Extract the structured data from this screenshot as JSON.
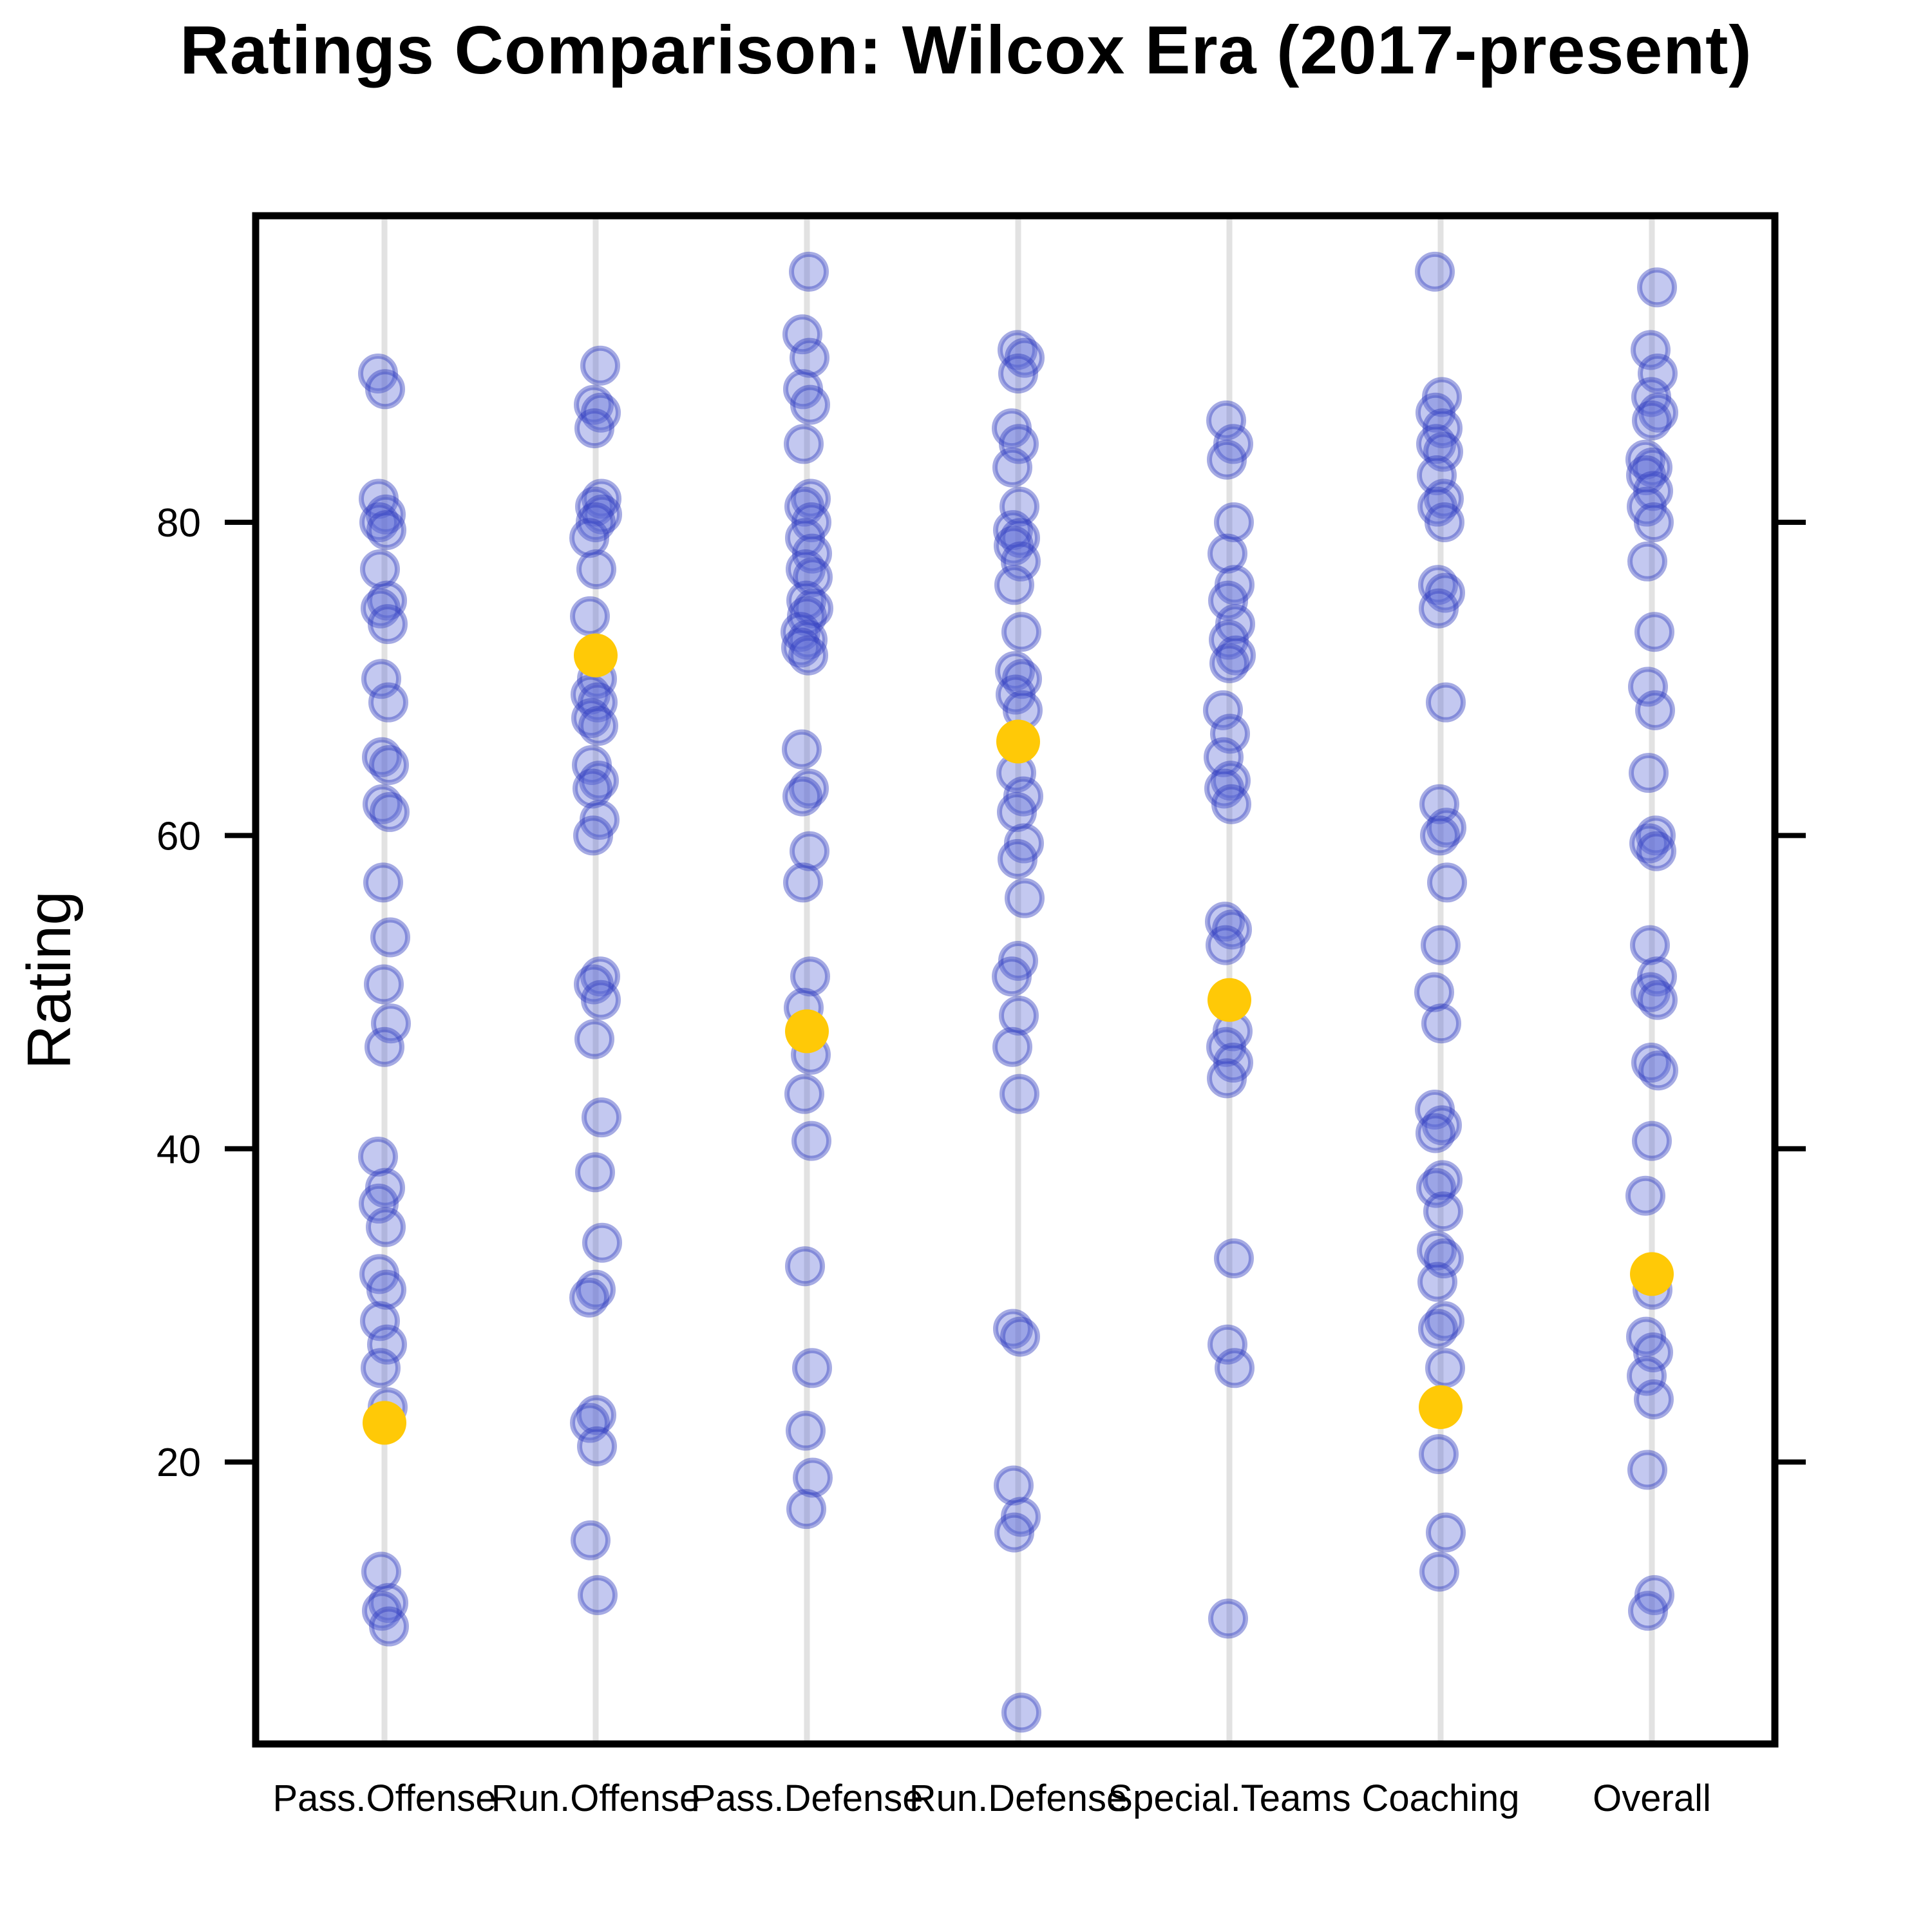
{
  "header": {
    "title": "Ratings Comparison: Wilcox Era (2017-present)"
  },
  "chart_data": {
    "type": "scatter",
    "variant": "categorical-strip-plot",
    "title": "Ratings Comparison: Wilcox Era (2017-present)",
    "xlabel": "",
    "ylabel": "Rating",
    "categories": [
      "Pass.Offense",
      "Run.Offense",
      "Pass.Defense",
      "Run.Defense",
      "Special.Teams",
      "Coaching",
      "Overall"
    ],
    "yticks": [
      20,
      40,
      60,
      80
    ],
    "ylim": [
      1.5,
      100
    ],
    "grid": {
      "vertical_category_lines": true,
      "horizontal_lines": false
    },
    "legend_position": "none",
    "series": [
      {
        "name": "all-ratings",
        "marker": "circle-translucent",
        "color": "#3c4bc8",
        "fill_opacity": 0.38,
        "points_by_category": {
          "Pass.Offense": [
            89.5,
            88.5,
            81.5,
            80.5,
            80,
            79.5,
            77,
            75,
            74.5,
            73.5,
            70,
            68.5,
            65,
            64.5,
            62,
            61.5,
            57,
            53.5,
            50.5,
            48,
            46.5,
            39.5,
            37.5,
            36.5,
            35,
            32,
            31,
            29,
            27.5,
            26,
            23.5,
            13,
            11,
            10.5,
            9.5
          ],
          "Run.Offense": [
            90,
            87.5,
            87,
            86,
            81.5,
            81,
            80.5,
            80,
            79,
            77,
            74,
            70,
            69,
            68.5,
            67.5,
            67,
            64.5,
            63.5,
            63,
            61,
            60,
            51,
            50.5,
            49.5,
            47,
            42,
            38.5,
            34,
            31,
            30.5,
            23,
            22.5,
            21,
            15,
            11.5
          ],
          "Pass.Defense": [
            96,
            92,
            90.5,
            88.5,
            87.5,
            85,
            81.5,
            81,
            80,
            79,
            78,
            77,
            76.5,
            75,
            74.5,
            74,
            73,
            72.5,
            72,
            71.5,
            65.5,
            63,
            62.5,
            59,
            57,
            51,
            49,
            46,
            43.5,
            40.5,
            32.5,
            26,
            22,
            19,
            17
          ],
          "Run.Defense": [
            91,
            90.5,
            89.5,
            86,
            85,
            83.5,
            81,
            79.5,
            79,
            78.5,
            77.5,
            76,
            73,
            70.5,
            70,
            69,
            68,
            64,
            62.5,
            61.5,
            59.5,
            58.5,
            56,
            52,
            51,
            48.5,
            46.5,
            43.5,
            28.5,
            28,
            18.5,
            16.5,
            15.5,
            4
          ],
          "Special.Teams": [
            86.5,
            85,
            84,
            80,
            78,
            76,
            75,
            73.5,
            72.5,
            71.5,
            71,
            68,
            66.5,
            65,
            63.5,
            63,
            62,
            54.5,
            54,
            53,
            47.5,
            46.5,
            45.5,
            44.5,
            33,
            27.5,
            26,
            10
          ],
          "Coaching": [
            96,
            88,
            87,
            86,
            85,
            84.5,
            83,
            81.5,
            81,
            80,
            76,
            75.5,
            74.5,
            68.5,
            62,
            60.5,
            60,
            57,
            53,
            50,
            48,
            42.5,
            41.5,
            41,
            38,
            37.5,
            36,
            33.5,
            33,
            31.5,
            29,
            28.5,
            26,
            20.5,
            15.5,
            13
          ],
          "Overall": [
            95,
            91,
            89.5,
            88,
            87,
            86.5,
            84,
            83.5,
            83,
            82,
            81,
            80,
            77.5,
            73,
            69.5,
            68,
            64,
            60,
            59.5,
            59,
            53,
            51,
            50,
            49.5,
            45.5,
            45,
            40.5,
            37,
            31,
            28,
            27,
            25.5,
            24,
            19.5,
            11.5,
            10.5
          ]
        }
      },
      {
        "name": "highlighted-rating",
        "marker": "circle-large-solid",
        "color": "#ffc907",
        "values": [
          22.5,
          71.5,
          47.5,
          66,
          49.5,
          23.5,
          32
        ]
      }
    ]
  },
  "axis": {
    "y_tick_labels": [
      "20",
      "40",
      "60",
      "80"
    ]
  },
  "colors": {
    "background": "#ffffff",
    "axis_box": "#000000",
    "category_gridline": "#e2e2e2",
    "dot_fill": "#5a66d6",
    "dot_ring": "#2b37bc",
    "highlight_dot": "#ffc907",
    "text": "#000000"
  }
}
